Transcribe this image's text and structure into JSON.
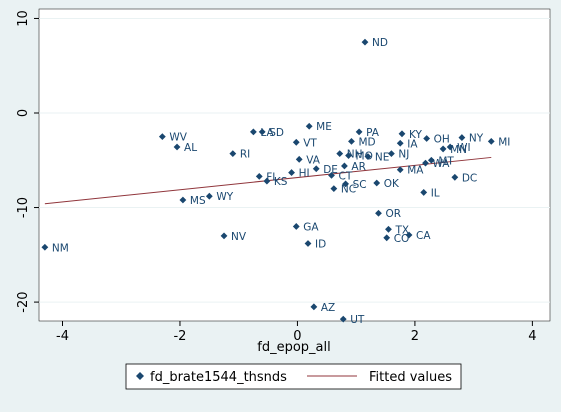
{
  "chart_data": {
    "type": "scatter",
    "xlabel": "fd_epop_all",
    "ylabel": "",
    "xlim": [
      -4.4,
      4.3
    ],
    "ylim": [
      -22,
      11
    ],
    "xticks": [
      -4,
      -2,
      0,
      2,
      4
    ],
    "yticks": [
      10,
      0,
      -10,
      -20
    ],
    "xtick_labels": [
      "-4",
      "-2",
      "0",
      "2",
      "4"
    ],
    "ytick_labels": [
      "10",
      "0",
      "-10",
      "-20"
    ],
    "legend_position": "bottom",
    "colors": {
      "background": "#eaf2f3",
      "plot_background": "#ffffff",
      "marker": "#1a476f",
      "fit_line": "#90353b",
      "grid": "#eaf2f3"
    },
    "series": [
      {
        "name": "fd_brate1544_thsnds",
        "kind": "scatter",
        "points": [
          {
            "label": "ND",
            "x": 1.15,
            "y": 7.5
          },
          {
            "label": "ME",
            "x": 0.2,
            "y": -1.4
          },
          {
            "label": "PA",
            "x": 1.05,
            "y": -2.0
          },
          {
            "label": "KY",
            "x": 1.78,
            "y": -2.2
          },
          {
            "label": "OH",
            "x": 2.2,
            "y": -2.7
          },
          {
            "label": "NY",
            "x": 2.8,
            "y": -2.6
          },
          {
            "label": "MI",
            "x": 3.3,
            "y": -3.0
          },
          {
            "label": "WV",
            "x": -2.3,
            "y": -2.5
          },
          {
            "label": "LA",
            "x": -0.75,
            "y": -2.0
          },
          {
            "label": "SD",
            "x": -0.6,
            "y": -2.0
          },
          {
            "label": "VT",
            "x": -0.02,
            "y": -3.1
          },
          {
            "label": "MD",
            "x": 0.92,
            "y": -3.0
          },
          {
            "label": "IA",
            "x": 1.75,
            "y": -3.2
          },
          {
            "label": "WI",
            "x": 2.6,
            "y": -3.6
          },
          {
            "label": "MN",
            "x": 2.48,
            "y": -3.8
          },
          {
            "label": "AL",
            "x": -2.05,
            "y": -3.6
          },
          {
            "label": "RI",
            "x": -1.1,
            "y": -4.3
          },
          {
            "label": "VA",
            "x": 0.03,
            "y": -4.9
          },
          {
            "label": "NH",
            "x": 0.72,
            "y": -4.3
          },
          {
            "label": "MO",
            "x": 0.87,
            "y": -4.5
          },
          {
            "label": "NE",
            "x": 1.2,
            "y": -4.6
          },
          {
            "label": "NJ",
            "x": 1.6,
            "y": -4.3
          },
          {
            "label": "MT",
            "x": 2.28,
            "y": -5.0
          },
          {
            "label": "WA",
            "x": 2.18,
            "y": -5.3
          },
          {
            "label": "HI",
            "x": -0.1,
            "y": -6.3
          },
          {
            "label": "DE",
            "x": 0.32,
            "y": -5.9
          },
          {
            "label": "AR",
            "x": 0.8,
            "y": -5.6
          },
          {
            "label": "MA",
            "x": 1.75,
            "y": -6.0
          },
          {
            "label": "FL",
            "x": -0.65,
            "y": -6.7
          },
          {
            "label": "KS",
            "x": -0.52,
            "y": -7.2
          },
          {
            "label": "CT",
            "x": 0.58,
            "y": -6.6
          },
          {
            "label": "DC",
            "x": 2.68,
            "y": -6.8
          },
          {
            "label": "SC",
            "x": 0.82,
            "y": -7.5
          },
          {
            "label": "NC",
            "x": 0.62,
            "y": -8.0
          },
          {
            "label": "OK",
            "x": 1.35,
            "y": -7.4
          },
          {
            "label": "IL",
            "x": 2.15,
            "y": -8.4
          },
          {
            "label": "WY",
            "x": -1.5,
            "y": -8.8
          },
          {
            "label": "MS",
            "x": -1.95,
            "y": -9.2
          },
          {
            "label": "OR",
            "x": 1.38,
            "y": -10.6
          },
          {
            "label": "GA",
            "x": -0.02,
            "y": -12.0
          },
          {
            "label": "TX",
            "x": 1.55,
            "y": -12.3
          },
          {
            "label": "NV",
            "x": -1.25,
            "y": -13.0
          },
          {
            "label": "CO",
            "x": 1.52,
            "y": -13.2
          },
          {
            "label": "CA",
            "x": 1.9,
            "y": -12.9
          },
          {
            "label": "ID",
            "x": 0.18,
            "y": -13.8
          },
          {
            "label": "NM",
            "x": -4.3,
            "y": -14.2
          },
          {
            "label": "AZ",
            "x": 0.28,
            "y": -20.5
          },
          {
            "label": "UT",
            "x": 0.78,
            "y": -21.8
          }
        ]
      },
      {
        "name": "Fitted values",
        "kind": "line",
        "points": [
          {
            "x": -4.3,
            "y": -9.6
          },
          {
            "x": 3.3,
            "y": -4.7
          }
        ]
      }
    ]
  }
}
